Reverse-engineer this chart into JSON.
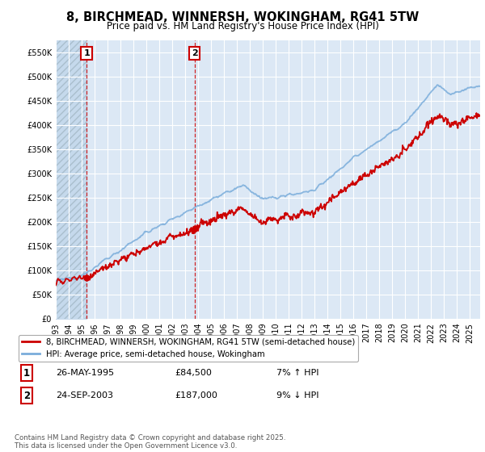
{
  "title": "8, BIRCHMEAD, WINNERSH, WOKINGHAM, RG41 5TW",
  "subtitle": "Price paid vs. HM Land Registry's House Price Index (HPI)",
  "legend_entry1": "8, BIRCHMEAD, WINNERSH, WOKINGHAM, RG41 5TW (semi-detached house)",
  "legend_entry2": "HPI: Average price, semi-detached house, Wokingham",
  "annotation1_label": "1",
  "annotation1_date": "26-MAY-1995",
  "annotation1_price": "£84,500",
  "annotation1_hpi": "7% ↑ HPI",
  "annotation2_label": "2",
  "annotation2_date": "24-SEP-2003",
  "annotation2_price": "£187,000",
  "annotation2_hpi": "9% ↓ HPI",
  "footer": "Contains HM Land Registry data © Crown copyright and database right 2025.\nThis data is licensed under the Open Government Licence v3.0.",
  "ylim": [
    0,
    575000
  ],
  "yticks": [
    0,
    50000,
    100000,
    150000,
    200000,
    250000,
    300000,
    350000,
    400000,
    450000,
    500000,
    550000
  ],
  "yticklabels": [
    "£0",
    "£50K",
    "£100K",
    "£150K",
    "£200K",
    "£250K",
    "£300K",
    "£350K",
    "£400K",
    "£450K",
    "£500K",
    "£550K"
  ],
  "red_line_color": "#cc0000",
  "blue_line_color": "#7aaddb",
  "annotation_vline_color": "#cc0000",
  "background_color": "#ffffff",
  "plot_bg_color": "#dce8f5",
  "grid_color": "#ffffff",
  "hatch_color": "#c5d9ec",
  "sale1_x": 1995.38,
  "sale1_y": 84500,
  "sale2_x": 2003.73,
  "sale2_y": 187000,
  "xmin": 1993.0,
  "xmax": 2025.8
}
